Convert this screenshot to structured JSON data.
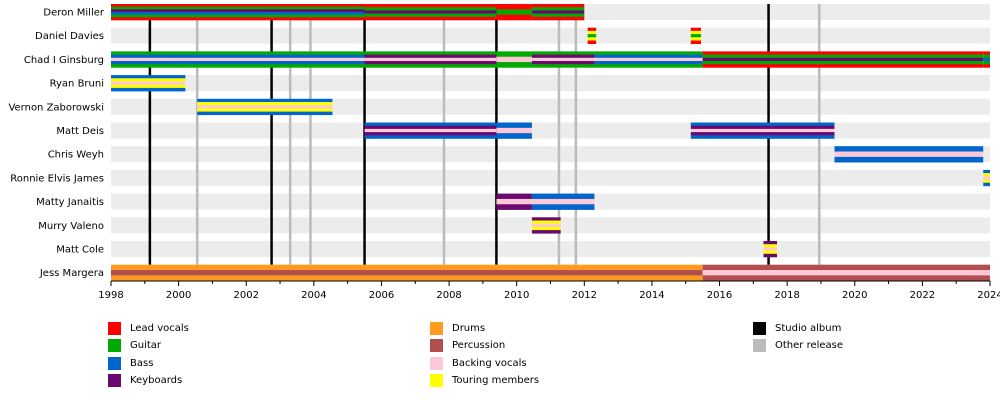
{
  "chart_data": {
    "type": "timeline",
    "xlim": [
      1998,
      2024
    ],
    "x_ticks": [
      "1998",
      "2000",
      "2002",
      "2004",
      "2006",
      "2008",
      "2010",
      "2012",
      "2014",
      "2016",
      "2018",
      "2020",
      "2022",
      "2024"
    ],
    "roles": {
      "lead": {
        "label": "Lead vocals",
        "color": "#ff0000"
      },
      "guitar": {
        "label": "Guitar",
        "color": "#00aa00"
      },
      "bass": {
        "label": "Bass",
        "color": "#0066cc"
      },
      "keyboards": {
        "label": "Keyboards",
        "color": "#6a0a6e"
      },
      "drums": {
        "label": "Drums",
        "color": "#ff9c1f"
      },
      "percussion": {
        "label": "Percussion",
        "color": "#b34e50"
      },
      "backing": {
        "label": "Backing vocals",
        "color": "#ffc8d8"
      },
      "touring": {
        "label": "Touring members",
        "color": "#ffff00"
      }
    },
    "events": {
      "studio": {
        "label": "Studio album",
        "color": "#000000",
        "years": [
          1999.15,
          2002.75,
          2005.5,
          2009.4,
          2017.45
        ]
      },
      "other": {
        "label": "Other release",
        "color": "#bbbbbb",
        "years": [
          2000.55,
          2003.3,
          2003.9,
          2007.85,
          2011.25,
          2011.75,
          2018.95
        ]
      }
    },
    "members": [
      {
        "name": "Deron Miller",
        "periods": [
          {
            "from": 1998,
            "to": 2005.5,
            "roles": [
              "lead",
              "guitar",
              "keyboards",
              "bass",
              "guitar",
              "lead"
            ]
          },
          {
            "from": 2005.5,
            "to": 2009.4,
            "roles": [
              "lead",
              "guitar",
              "keyboards",
              "guitar",
              "lead"
            ]
          },
          {
            "from": 2009.4,
            "to": 2010.45,
            "roles": [
              "lead",
              "guitar",
              "lead"
            ]
          },
          {
            "from": 2010.45,
            "to": 2012.0,
            "roles": [
              "lead",
              "guitar",
              "keyboards",
              "guitar",
              "lead"
            ]
          }
        ]
      },
      {
        "name": "Daniel Davies",
        "periods": [
          {
            "from": 2012.1,
            "to": 2012.35,
            "roles": [
              "lead",
              "touring",
              "guitar",
              "touring",
              "lead"
            ]
          },
          {
            "from": 2015.15,
            "to": 2015.45,
            "roles": [
              "lead",
              "touring",
              "guitar",
              "touring",
              "lead"
            ]
          }
        ]
      },
      {
        "name": "Chad I Ginsburg",
        "periods": [
          {
            "from": 1998,
            "to": 2005.5,
            "roles": [
              "guitar",
              "bass",
              "backing",
              "bass",
              "guitar"
            ]
          },
          {
            "from": 2005.5,
            "to": 2009.4,
            "roles": [
              "guitar",
              "keyboards",
              "backing",
              "keyboards",
              "guitar"
            ]
          },
          {
            "from": 2009.4,
            "to": 2010.45,
            "roles": [
              "guitar",
              "backing",
              "guitar"
            ]
          },
          {
            "from": 2010.45,
            "to": 2012.3,
            "roles": [
              "guitar",
              "keyboards",
              "backing",
              "keyboards",
              "guitar"
            ]
          },
          {
            "from": 2012.3,
            "to": 2015.5,
            "roles": [
              "guitar",
              "bass",
              "backing",
              "bass",
              "guitar"
            ]
          },
          {
            "from": 2015.5,
            "to": 2023.8,
            "roles": [
              "lead",
              "guitar",
              "keyboards",
              "guitar",
              "lead"
            ]
          },
          {
            "from": 2023.8,
            "to": 2024,
            "roles": [
              "lead",
              "guitar",
              "bass",
              "guitar",
              "lead"
            ]
          }
        ]
      },
      {
        "name": "Ryan Bruni",
        "periods": [
          {
            "from": 1998,
            "to": 2000.2,
            "roles": [
              "bass",
              "touring",
              "backing",
              "touring",
              "bass"
            ]
          }
        ]
      },
      {
        "name": "Vernon Zaborowski",
        "periods": [
          {
            "from": 2000.55,
            "to": 2004.55,
            "roles": [
              "bass",
              "touring",
              "backing",
              "touring",
              "bass"
            ]
          }
        ]
      },
      {
        "name": "Matt Deis",
        "periods": [
          {
            "from": 2005.5,
            "to": 2009.4,
            "roles": [
              "bass",
              "keyboards",
              "backing",
              "keyboards",
              "bass"
            ]
          },
          {
            "from": 2009.4,
            "to": 2010.45,
            "roles": [
              "bass",
              "backing",
              "bass"
            ]
          },
          {
            "from": 2015.15,
            "to": 2019.4,
            "roles": [
              "bass",
              "keyboards",
              "backing",
              "keyboards",
              "bass"
            ]
          }
        ]
      },
      {
        "name": "Chris Weyh",
        "periods": [
          {
            "from": 2019.4,
            "to": 2023.8,
            "roles": [
              "bass",
              "backing",
              "bass"
            ]
          }
        ]
      },
      {
        "name": "Ronnie Elvis James",
        "periods": [
          {
            "from": 2023.8,
            "to": 2024,
            "roles": [
              "bass",
              "touring",
              "backing",
              "touring",
              "bass"
            ]
          }
        ]
      },
      {
        "name": "Matty Janaitis",
        "periods": [
          {
            "from": 2009.4,
            "to": 2010.45,
            "roles": [
              "keyboards",
              "backing",
              "keyboards"
            ]
          },
          {
            "from": 2010.45,
            "to": 2012.3,
            "roles": [
              "bass",
              "backing",
              "bass"
            ]
          }
        ]
      },
      {
        "name": "Murry Valeno",
        "periods": [
          {
            "from": 2010.45,
            "to": 2011.3,
            "roles": [
              "keyboards",
              "touring",
              "backing",
              "touring",
              "keyboards"
            ]
          }
        ]
      },
      {
        "name": "Matt Cole",
        "periods": [
          {
            "from": 2017.3,
            "to": 2017.7,
            "roles": [
              "keyboards",
              "touring",
              "backing",
              "touring",
              "keyboards"
            ]
          }
        ]
      },
      {
        "name": "Jess Margera",
        "periods": [
          {
            "from": 1998,
            "to": 2015.5,
            "roles": [
              "drums",
              "percussion",
              "drums"
            ]
          },
          {
            "from": 2015.5,
            "to": 2024,
            "roles": [
              "percussion",
              "backing",
              "percussion"
            ]
          }
        ]
      }
    ],
    "legend": {
      "columns": [
        [
          "lead",
          "guitar",
          "bass",
          "keyboards"
        ],
        [
          "drums",
          "percussion",
          "backing",
          "touring"
        ],
        [
          "studio",
          "other"
        ]
      ]
    },
    "background_band_color": "#ececec"
  }
}
